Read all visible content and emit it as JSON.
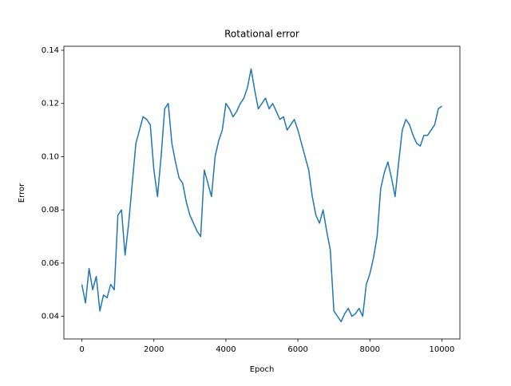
{
  "chart_data": {
    "type": "line",
    "title": "Rotational error",
    "x_label": "Epoch",
    "y_label": "Error",
    "x": [
      0,
      100,
      200,
      300,
      400,
      500,
      600,
      700,
      800,
      900,
      1000,
      1100,
      1200,
      1300,
      1400,
      1500,
      1600,
      1700,
      1800,
      1900,
      2000,
      2100,
      2200,
      2300,
      2400,
      2500,
      2600,
      2700,
      2800,
      2900,
      3000,
      3100,
      3200,
      3300,
      3400,
      3500,
      3600,
      3700,
      3800,
      3900,
      4000,
      4100,
      4200,
      4300,
      4400,
      4500,
      4600,
      4700,
      4800,
      4900,
      5000,
      5100,
      5200,
      5300,
      5400,
      5500,
      5600,
      5700,
      5800,
      5900,
      6000,
      6100,
      6200,
      6300,
      6400,
      6500,
      6600,
      6700,
      6800,
      6900,
      7000,
      7100,
      7200,
      7300,
      7400,
      7500,
      7600,
      7700,
      7800,
      7900,
      8000,
      8100,
      8200,
      8300,
      8400,
      8500,
      8600,
      8700,
      8800,
      8900,
      9000,
      9100,
      9200,
      9300,
      9400,
      9500,
      9600,
      9700,
      9800,
      9900,
      10000
    ],
    "values": [
      0.052,
      0.045,
      0.058,
      0.05,
      0.055,
      0.042,
      0.048,
      0.047,
      0.052,
      0.05,
      0.078,
      0.08,
      0.063,
      0.075,
      0.09,
      0.105,
      0.11,
      0.115,
      0.114,
      0.112,
      0.095,
      0.085,
      0.1,
      0.118,
      0.12,
      0.105,
      0.098,
      0.092,
      0.09,
      0.083,
      0.078,
      0.075,
      0.072,
      0.07,
      0.095,
      0.09,
      0.085,
      0.1,
      0.106,
      0.11,
      0.12,
      0.118,
      0.115,
      0.117,
      0.12,
      0.122,
      0.126,
      0.133,
      0.125,
      0.118,
      0.12,
      0.122,
      0.118,
      0.12,
      0.117,
      0.114,
      0.115,
      0.11,
      0.112,
      0.114,
      0.11,
      0.105,
      0.1,
      0.095,
      0.085,
      0.078,
      0.075,
      0.08,
      0.072,
      0.065,
      0.042,
      0.04,
      0.038,
      0.041,
      0.043,
      0.04,
      0.041,
      0.043,
      0.04,
      0.052,
      0.056,
      0.062,
      0.07,
      0.088,
      0.094,
      0.098,
      0.092,
      0.085,
      0.098,
      0.11,
      0.114,
      0.112,
      0.108,
      0.105,
      0.104,
      0.108,
      0.108,
      0.11,
      0.112,
      0.118,
      0.119
    ],
    "color": "#1f77b4",
    "xlim": [
      -500,
      10500
    ],
    "xticks": [
      0,
      2000,
      4000,
      6000,
      8000,
      10000
    ],
    "ylim": [
      0.0315,
      0.1415
    ],
    "yticks": [
      0.04,
      0.06,
      0.08,
      {
        "value": 0.1,
        "label": "0.10"
      },
      0.12,
      0.14
    ]
  }
}
